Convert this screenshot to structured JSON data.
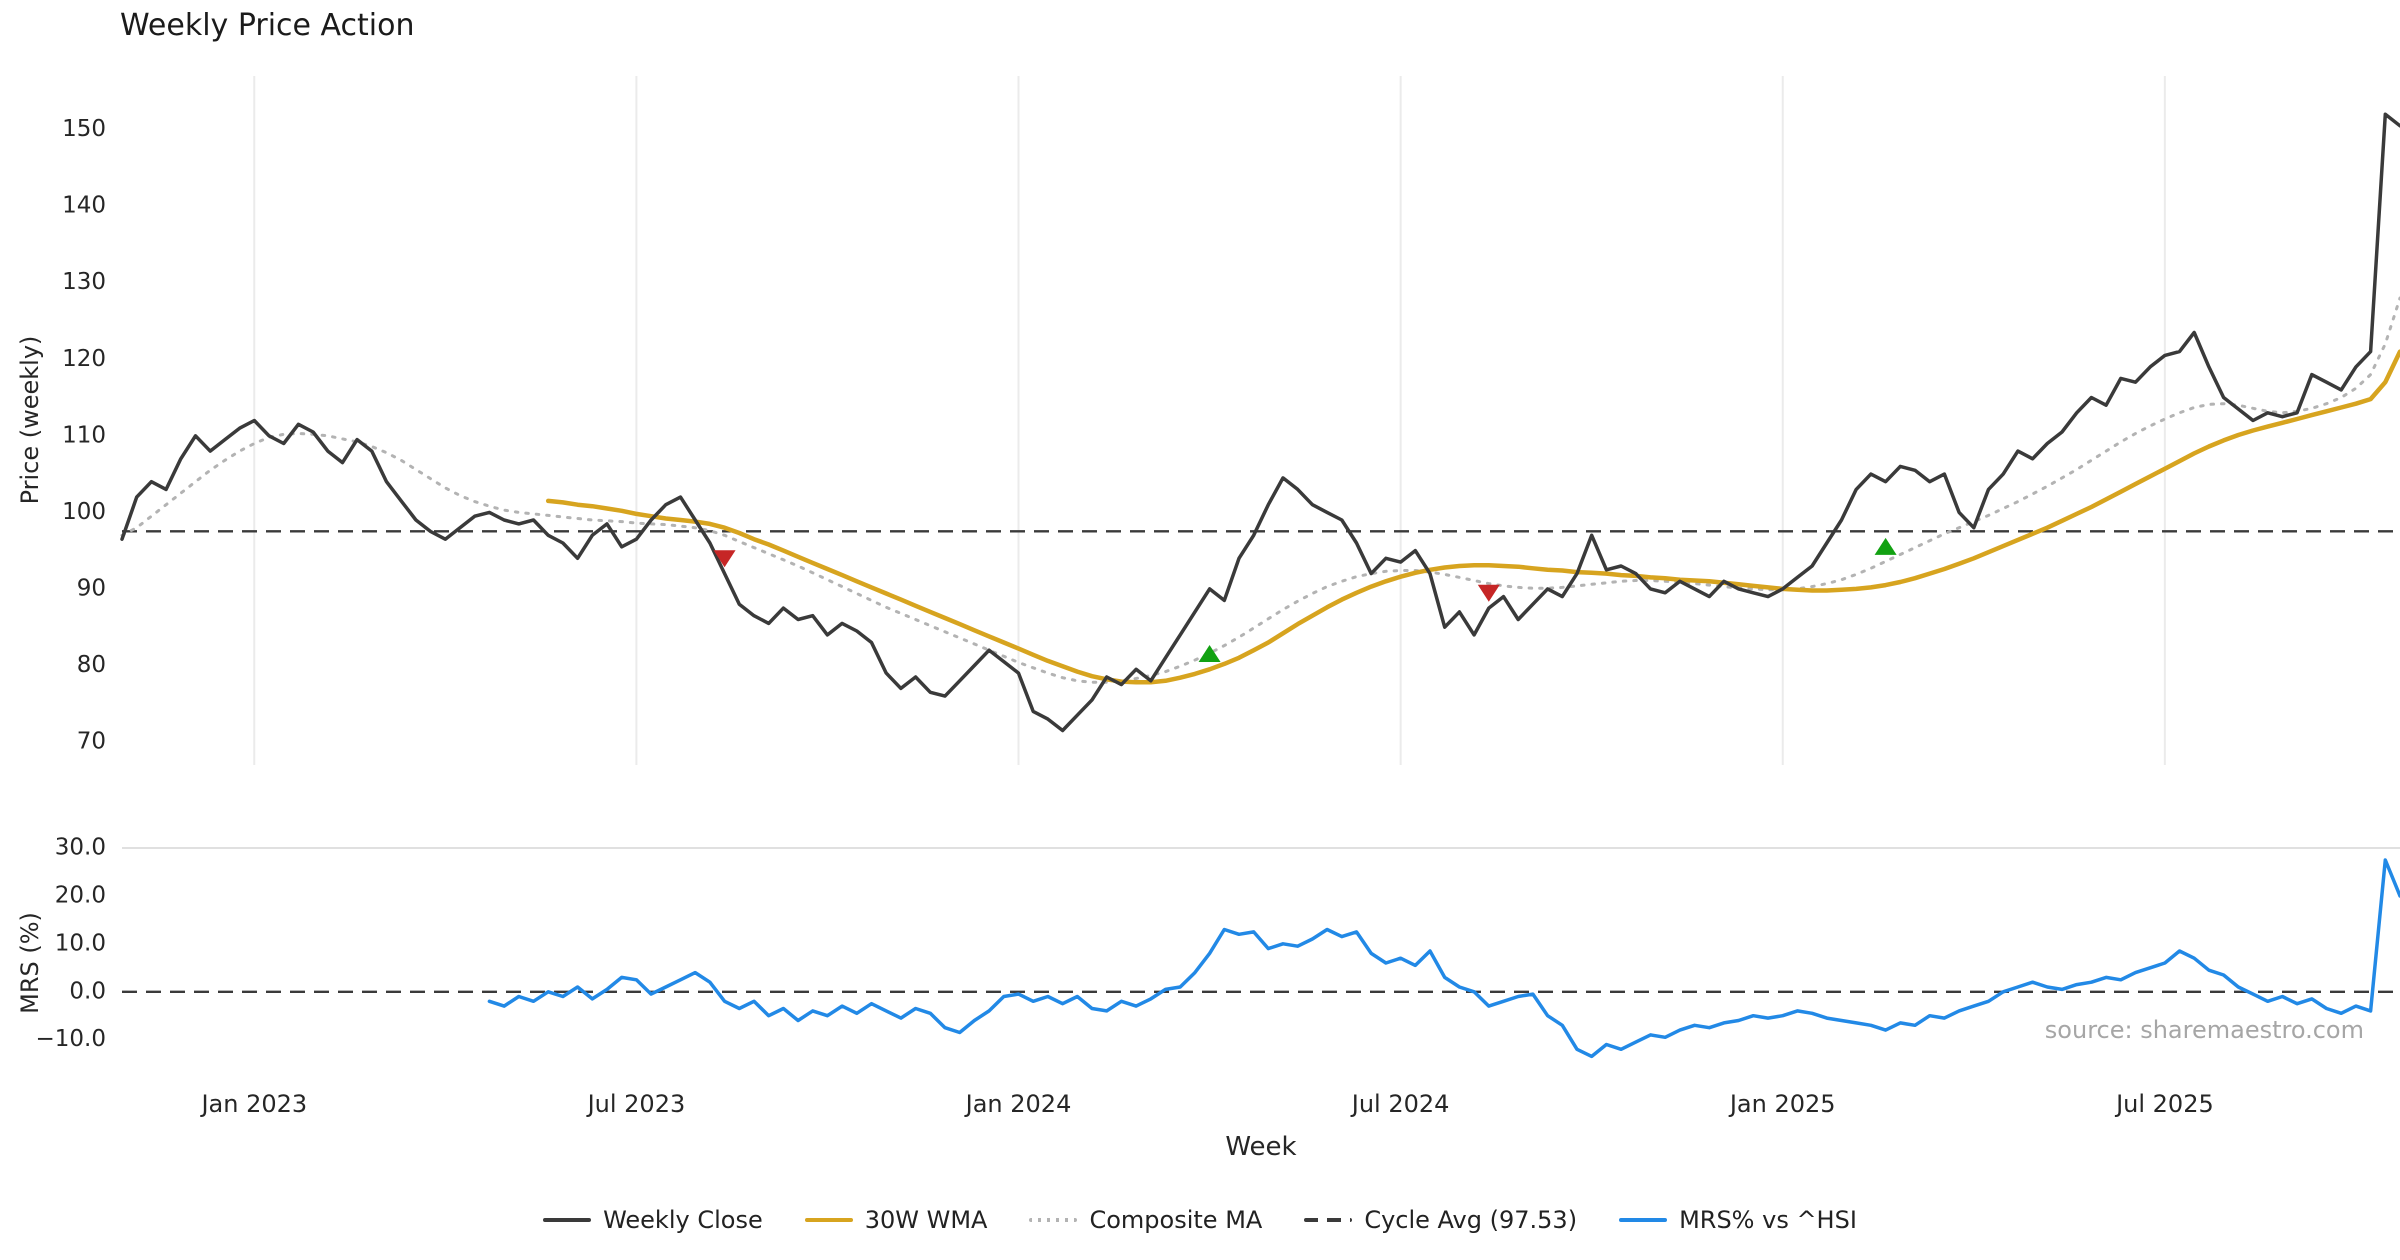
{
  "title": "Weekly Price Action",
  "xlabel": "Week",
  "source": "source: sharemaestro.com",
  "legend": {
    "items": [
      {
        "label": "Weekly Close",
        "style": "solid",
        "color": "#3a3a3a"
      },
      {
        "label": "30W WMA",
        "style": "solid",
        "color": "#d7a41f"
      },
      {
        "label": "Composite MA",
        "style": "dotted",
        "color": "#b3b3b3"
      },
      {
        "label": "Cycle Avg (97.53)",
        "style": "dashed",
        "color": "#3a3a3a"
      },
      {
        "label": "MRS% vs ^HSI",
        "style": "solid",
        "color": "#2289e6"
      }
    ]
  },
  "chart_data": {
    "type": "line",
    "n_points": 156,
    "x_tick_labels": [
      "Jan 2023",
      "Jul 2023",
      "Jan 2024",
      "Jul 2024",
      "Jan 2025",
      "Jul 2025"
    ],
    "x_tick_indices": [
      9,
      35,
      61,
      87,
      113,
      139
    ],
    "grid": "faint-vertical-top-panel",
    "legend_position": "bottom-center",
    "panels": [
      {
        "name": "price",
        "ylabel": "Price (weekly)",
        "ylim": [
          67,
          157
        ],
        "yticks": [
          "150",
          "140",
          "130",
          "120",
          "110",
          "100",
          "90",
          "80",
          "70"
        ],
        "ytick_values": [
          150,
          140,
          130,
          120,
          110,
          100,
          90,
          80,
          70
        ],
        "hline": {
          "label": "Cycle Avg",
          "value": 97.53
        },
        "series": [
          {
            "key": "composite-ma",
            "name": "Composite MA",
            "color": "#b3b3b3",
            "width": 3,
            "dash": "2.5 8",
            "values": [
              97,
              98,
              99.5,
              101,
              102.5,
              104,
              105.5,
              106.8,
              108,
              109,
              109.8,
              110.2,
              110.3,
              110.2,
              110,
              109.6,
              109.2,
              108.6,
              107.8,
              106.8,
              105.6,
              104.4,
              103.2,
              102.2,
              101.4,
              100.8,
              100.3,
              100,
              99.8,
              99.6,
              99.4,
              99.2,
              99,
              98.9,
              98.8,
              98.6,
              98.5,
              98.4,
              98.2,
              98,
              97.6,
              97,
              96.2,
              95.4,
              94.6,
              93.8,
              93,
              92.1,
              91.2,
              90.3,
              89.4,
              88.5,
              87.6,
              86.8,
              86,
              85.2,
              84.4,
              83.6,
              82.8,
              82,
              81.2,
              80.4,
              79.7,
              79,
              78.4,
              78,
              77.8,
              77.8,
              78,
              78.3,
              78.7,
              79.2,
              79.9,
              80.7,
              81.6,
              82.6,
              83.7,
              84.9,
              86.1,
              87.3,
              88.4,
              89.4,
              90.3,
              91,
              91.6,
              92,
              92.3,
              92.4,
              92.4,
              92.2,
              91.9,
              91.5,
              91.1,
              90.7,
              90.4,
              90.2,
              90.1,
              90.1,
              90.2,
              90.4,
              90.6,
              90.8,
              91,
              91.1,
              91.1,
              91,
              90.9,
              90.7,
              90.5,
              90.3,
              90.1,
              90,
              89.9,
              89.9,
              90,
              90.3,
              90.7,
              91.2,
              91.9,
              92.7,
              93.6,
              94.5,
              95.4,
              96.3,
              97.2,
              98,
              98.8,
              99.6,
              100.5,
              101.4,
              102.4,
              103.4,
              104.5,
              105.6,
              106.8,
              108,
              109.2,
              110.3,
              111.3,
              112.2,
              113,
              113.7,
              114.1,
              114.2,
              114,
              113.6,
              113.2,
              113,
              113.2,
              113.6,
              114.2,
              115,
              116.2,
              118,
              122,
              128
            ]
          },
          {
            "key": "wma-30w",
            "name": "30W WMA",
            "color": "#d7a41f",
            "width": 4.5,
            "values": [
              null,
              null,
              null,
              null,
              null,
              null,
              null,
              null,
              null,
              null,
              null,
              null,
              null,
              null,
              null,
              null,
              null,
              null,
              null,
              null,
              null,
              null,
              null,
              null,
              null,
              null,
              null,
              null,
              null,
              101.5,
              101.3,
              101,
              100.8,
              100.5,
              100.2,
              99.8,
              99.5,
              99.2,
              99,
              98.8,
              98.5,
              98,
              97.3,
              96.5,
              95.8,
              95,
              94.2,
              93.4,
              92.6,
              91.8,
              91,
              90.2,
              89.4,
              88.6,
              87.8,
              87,
              86.2,
              85.4,
              84.6,
              83.8,
              83,
              82.2,
              81.4,
              80.6,
              79.9,
              79.2,
              78.6,
              78.2,
              77.9,
              77.8,
              77.8,
              78,
              78.4,
              78.9,
              79.5,
              80.2,
              81,
              82,
              83,
              84.2,
              85.4,
              86.5,
              87.6,
              88.6,
              89.5,
              90.3,
              91,
              91.6,
              92.1,
              92.5,
              92.8,
              93,
              93.1,
              93.1,
              93,
              92.9,
              92.7,
              92.5,
              92.4,
              92.2,
              92.1,
              92,
              91.8,
              91.7,
              91.5,
              91.4,
              91.2,
              91.1,
              91,
              90.8,
              90.6,
              90.4,
              90.2,
              90,
              89.9,
              89.8,
              89.8,
              89.9,
              90,
              90.2,
              90.5,
              90.9,
              91.4,
              92,
              92.6,
              93.3,
              94,
              94.8,
              95.6,
              96.4,
              97.2,
              98,
              98.9,
              99.8,
              100.7,
              101.7,
              102.7,
              103.7,
              104.7,
              105.7,
              106.7,
              107.7,
              108.6,
              109.4,
              110.1,
              110.7,
              111.2,
              111.7,
              112.2,
              112.7,
              113.2,
              113.7,
              114.2,
              114.8,
              117,
              121
            ]
          },
          {
            "key": "weekly-close",
            "name": "Weekly Close",
            "color": "#3a3a3a",
            "width": 3.5,
            "values": [
              96.5,
              102,
              104,
              103,
              107,
              110,
              108,
              109.5,
              111,
              112,
              110,
              109,
              111.5,
              110.5,
              108,
              106.5,
              109.5,
              108,
              104,
              101.5,
              99,
              97.5,
              96.5,
              98,
              99.5,
              100,
              99,
              98.5,
              99,
              97,
              96,
              94,
              97,
              98.5,
              95.5,
              96.5,
              99,
              101,
              102,
              99,
              96,
              92,
              88,
              86.5,
              85.5,
              87.5,
              86,
              86.5,
              84,
              85.5,
              84.5,
              83,
              79,
              77,
              78.5,
              76.5,
              76,
              78,
              80,
              82,
              80.5,
              79,
              74,
              73,
              71.5,
              73.5,
              75.5,
              78.5,
              77.5,
              79.5,
              78,
              81,
              84,
              87,
              90,
              88.5,
              94,
              97,
              101,
              104.5,
              103,
              101,
              100,
              99,
              96,
              92,
              94,
              93.5,
              95,
              92,
              85,
              87,
              84,
              87.5,
              89,
              86,
              88,
              90,
              89,
              92,
              97,
              92.5,
              93,
              92,
              90,
              89.5,
              91,
              90,
              89,
              91,
              90,
              89.5,
              89,
              90,
              91.5,
              93,
              96,
              99,
              103,
              105,
              104,
              106,
              105.5,
              104,
              105,
              100,
              98,
              103,
              105,
              108,
              107,
              109,
              110.5,
              113,
              115,
              114,
              117.5,
              117,
              119,
              120.5,
              121,
              123.5,
              119,
              115,
              113.5,
              112,
              113,
              112.5,
              113,
              118,
              117,
              116,
              119,
              121,
              152,
              150.5
            ]
          }
        ],
        "markers": {
          "sell": {
            "color": "#c62626",
            "shape": "triangle-down",
            "points": [
              {
                "i": 41,
                "v": 94
              },
              {
                "i": 93,
                "v": 89.5
              }
            ]
          },
          "buy": {
            "color": "#12a112",
            "shape": "triangle-up",
            "points": [
              {
                "i": 74,
                "v": 81.5
              },
              {
                "i": 120,
                "v": 95.5
              }
            ]
          }
        }
      },
      {
        "name": "mrs",
        "ylabel": "MRS (%)",
        "ylim": [
          -18,
          30
        ],
        "yticks": [
          "30.0",
          "20.0",
          "10.0",
          "0.0",
          "−10.0"
        ],
        "ytick_values": [
          30,
          20,
          10,
          0,
          -10
        ],
        "hline": {
          "label": "zero",
          "value": 0
        },
        "series": [
          {
            "key": "mrs",
            "name": "MRS% vs ^HSI",
            "color": "#2289e6",
            "width": 3.5,
            "values": [
              null,
              null,
              null,
              null,
              null,
              null,
              null,
              null,
              null,
              null,
              null,
              null,
              null,
              null,
              null,
              null,
              null,
              null,
              null,
              null,
              null,
              null,
              null,
              null,
              null,
              -2,
              -3,
              -1,
              -2,
              0,
              -1,
              1,
              -1.5,
              0.5,
              3,
              2.5,
              -0.5,
              1,
              2.5,
              4,
              2,
              -2,
              -3.5,
              -2,
              -5,
              -3.5,
              -6,
              -4,
              -5,
              -3,
              -4.5,
              -2.5,
              -4,
              -5.5,
              -3.5,
              -4.5,
              -7.5,
              -8.5,
              -6,
              -4,
              -1,
              -0.5,
              -2,
              -1,
              -2.5,
              -1,
              -3.5,
              -4,
              -2,
              -3,
              -1.5,
              0.5,
              1,
              4,
              8,
              13,
              12,
              12.5,
              9,
              10,
              9.5,
              11,
              13,
              11.5,
              12.5,
              8,
              6,
              7,
              5.5,
              8.5,
              3,
              1,
              0,
              -3,
              -2,
              -1,
              -0.5,
              -5,
              -7,
              -12,
              -13.5,
              -11,
              -12,
              -10.5,
              -9,
              -9.5,
              -8,
              -7,
              -7.5,
              -6.5,
              -6,
              -5,
              -5.5,
              -5,
              -4,
              -4.5,
              -5.5,
              -6,
              -6.5,
              -7,
              -8,
              -6.5,
              -7,
              -5,
              -5.5,
              -4,
              -3,
              -2,
              0,
              1,
              2,
              1,
              0.5,
              1.5,
              2,
              3,
              2.5,
              4,
              5,
              6,
              8.5,
              7,
              4.5,
              3.5,
              1,
              -0.5,
              -2,
              -1,
              -2.5,
              -1.5,
              -3.5,
              -4.5,
              -3,
              -4,
              27.5,
              20
            ]
          }
        ]
      }
    ]
  }
}
